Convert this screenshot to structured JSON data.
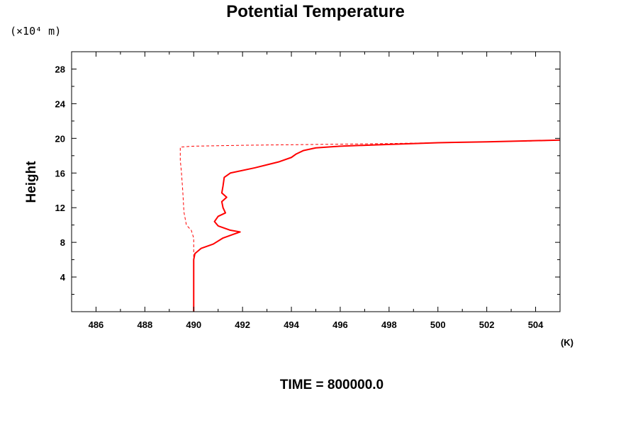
{
  "chart_data": {
    "type": "line",
    "title": "Potential Temperature",
    "ylabel": "Height",
    "y_unit": "(×10⁴ m)",
    "x_unit": "(K)",
    "footer": "TIME = 800000.0",
    "xlim": [
      485,
      505
    ],
    "ylim": [
      0,
      30
    ],
    "x_ticks": [
      "486",
      "488",
      "490",
      "492",
      "494",
      "496",
      "498",
      "500",
      "502",
      "504"
    ],
    "y_ticks": [
      "4",
      "8",
      "12",
      "16",
      "20",
      "24",
      "28"
    ],
    "grid": false,
    "colors": {
      "series": "#ff0000",
      "frame": "#000000"
    },
    "series": [
      {
        "style": "solid",
        "points": [
          [
            490.0,
            0.0
          ],
          [
            490.0,
            3.0
          ],
          [
            490.0,
            6.0
          ],
          [
            490.05,
            6.7
          ],
          [
            490.3,
            7.3
          ],
          [
            490.8,
            7.8
          ],
          [
            491.2,
            8.5
          ],
          [
            491.6,
            8.9
          ],
          [
            491.9,
            9.2
          ],
          [
            491.5,
            9.4
          ],
          [
            491.0,
            9.9
          ],
          [
            490.85,
            10.4
          ],
          [
            491.0,
            11.0
          ],
          [
            491.3,
            11.4
          ],
          [
            491.2,
            12.0
          ],
          [
            491.15,
            12.7
          ],
          [
            491.35,
            13.2
          ],
          [
            491.15,
            13.7
          ],
          [
            491.2,
            14.5
          ],
          [
            491.25,
            15.5
          ],
          [
            491.5,
            16.0
          ],
          [
            492.5,
            16.6
          ],
          [
            493.5,
            17.3
          ],
          [
            494.0,
            17.8
          ],
          [
            494.2,
            18.2
          ],
          [
            494.5,
            18.6
          ],
          [
            495.0,
            18.9
          ],
          [
            496.0,
            19.1
          ],
          [
            498.0,
            19.3
          ],
          [
            500.0,
            19.5
          ],
          [
            502.0,
            19.6
          ],
          [
            503.5,
            19.7
          ],
          [
            505.0,
            19.8
          ]
        ]
      },
      {
        "style": "dashed",
        "points": [
          [
            490.0,
            0.0
          ],
          [
            490.0,
            6.0
          ],
          [
            490.0,
            8.5
          ],
          [
            489.9,
            9.4
          ],
          [
            489.7,
            10.0
          ],
          [
            489.6,
            11.5
          ],
          [
            489.55,
            14.0
          ],
          [
            489.5,
            16.0
          ],
          [
            489.45,
            17.5
          ],
          [
            489.45,
            18.5
          ],
          [
            489.45,
            19.0
          ],
          [
            490.0,
            19.1
          ],
          [
            492.0,
            19.2
          ],
          [
            495.0,
            19.3
          ],
          [
            498.0,
            19.4
          ],
          [
            500.0,
            19.5
          ],
          [
            502.0,
            19.6
          ],
          [
            504.0,
            19.7
          ],
          [
            505.0,
            19.8
          ]
        ]
      }
    ]
  }
}
